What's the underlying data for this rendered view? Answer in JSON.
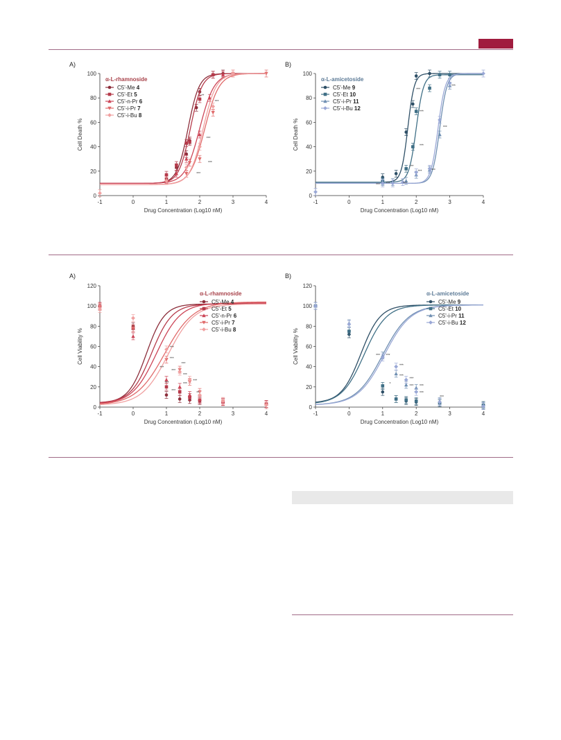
{
  "page": {
    "accent_color": "#a01c3e",
    "rule_color": "#a06a86"
  },
  "chart_data": [
    {
      "id": "top-left",
      "panel": "A)",
      "type": "line",
      "ylabel": "Cell Death %",
      "xlabel": "Drug Concentration (Log10 nM)",
      "xlim": [
        -1,
        4
      ],
      "ylim": [
        0,
        100
      ],
      "xticks": [
        "-1",
        "0",
        "1",
        "2",
        "3",
        "4"
      ],
      "yticks": [
        "0",
        "20",
        "40",
        "60",
        "80",
        "100"
      ],
      "legend_title": "α-L-rhamnoside",
      "legend_color": "#a8424a",
      "series": [
        {
          "label": "C5'-Me",
          "num": "4",
          "color": "#8c2d3a",
          "marker": "circle",
          "curve": {
            "bottom": 10,
            "top": 100,
            "ec50": 1.65,
            "hill": 2.6
          },
          "points": [
            [
              1.0,
              14
            ],
            [
              1.3,
              23
            ],
            [
              1.6,
              34
            ],
            [
              1.7,
              45
            ],
            [
              1.9,
              72
            ],
            [
              2.0,
              85
            ],
            [
              2.4,
              99
            ],
            [
              2.7,
              100
            ]
          ]
        },
        {
          "label": "C5'-Et",
          "num": "5",
          "color": "#b53a4a",
          "marker": "square",
          "curve": {
            "bottom": 10,
            "top": 100,
            "ec50": 1.72,
            "hill": 2.5
          },
          "points": [
            [
              1.0,
              17
            ],
            [
              1.3,
              25
            ],
            [
              1.6,
              43
            ],
            [
              1.7,
              44
            ],
            [
              2.0,
              79
            ],
            [
              2.4,
              99
            ]
          ]
        },
        {
          "label": "C5'-n-Pr",
          "num": "6",
          "color": "#cc4456",
          "marker": "triangle",
          "curve": {
            "bottom": 10,
            "top": 100,
            "ec50": 2.0,
            "hill": 2.0
          },
          "points": [
            [
              1.0,
              13
            ],
            [
              1.3,
              18
            ],
            [
              1.6,
              30
            ],
            [
              2.0,
              50
            ],
            [
              2.3,
              80
            ],
            [
              2.7,
              99
            ]
          ]
        },
        {
          "label": "C5'-i-Pr",
          "num": "7",
          "color": "#e06a6a",
          "marker": "triangle-down",
          "curve": {
            "bottom": 9,
            "top": 100,
            "ec50": 2.15,
            "hill": 2.0
          },
          "points": [
            [
              1.0,
              12
            ],
            [
              1.6,
              18
            ],
            [
              1.7,
              27
            ],
            [
              2.0,
              30
            ],
            [
              2.4,
              68
            ],
            [
              3.0,
              100
            ],
            [
              4.0,
              100
            ]
          ]
        },
        {
          "label": "C5'-i-Bu",
          "num": "8",
          "color": "#f0a0a0",
          "marker": "diamond",
          "curve": {
            "bottom": 9,
            "top": 100,
            "ec50": 2.1,
            "hill": 2.2
          },
          "points": [
            [
              -1.0,
              2
            ],
            [
              1.0,
              12
            ],
            [
              1.6,
              23
            ],
            [
              2.0,
              40
            ],
            [
              2.4,
              73
            ],
            [
              3.0,
              100
            ]
          ]
        }
      ],
      "annotations": [
        {
          "x": 2.05,
          "y": 81,
          "text": "**"
        },
        {
          "x": 2.45,
          "y": 76,
          "text": "***"
        },
        {
          "x": 2.2,
          "y": 46,
          "text": "***"
        },
        {
          "x": 2.25,
          "y": 26,
          "text": "***"
        },
        {
          "x": 1.9,
          "y": 17,
          "text": "***"
        }
      ]
    },
    {
      "id": "top-right",
      "panel": "B)",
      "type": "line",
      "ylabel": "Cell Death %",
      "xlabel": "Drug Concentration (Log10 nM)",
      "xlim": [
        -1,
        4
      ],
      "ylim": [
        0,
        100
      ],
      "xticks": [
        "-1",
        "0",
        "1",
        "2",
        "3",
        "4"
      ],
      "yticks": [
        "0",
        "20",
        "40",
        "60",
        "80",
        "100"
      ],
      "legend_title": "α-L-amicetoside",
      "legend_color": "#5c7a96",
      "series": [
        {
          "label": "C5'-Me",
          "num": "9",
          "color": "#2e4f66",
          "marker": "circle",
          "curve": {
            "bottom": 11,
            "top": 100,
            "ec50": 1.75,
            "hill": 4.5
          },
          "points": [
            [
              1.0,
              15
            ],
            [
              1.4,
              18
            ],
            [
              1.7,
              52
            ],
            [
              1.9,
              75
            ],
            [
              2.0,
              98
            ],
            [
              2.4,
              100
            ]
          ]
        },
        {
          "label": "C5'-Et",
          "num": "10",
          "color": "#3f6f86",
          "marker": "square",
          "curve": {
            "bottom": 11,
            "top": 99,
            "ec50": 2.0,
            "hill": 4.0
          },
          "points": [
            [
              1.0,
              12
            ],
            [
              1.7,
              22
            ],
            [
              1.9,
              40
            ],
            [
              2.0,
              69
            ],
            [
              2.4,
              88
            ],
            [
              2.7,
              99
            ],
            [
              3.0,
              99
            ]
          ]
        },
        {
          "label": "C5'-i-Pr",
          "num": "11",
          "color": "#6f8fb2",
          "marker": "triangle",
          "curve": {
            "bottom": 10,
            "top": 100,
            "ec50": 2.7,
            "hill": 4.0
          },
          "points": [
            [
              1.0,
              11
            ],
            [
              1.3,
              11
            ],
            [
              1.7,
              12
            ],
            [
              2.0,
              17
            ],
            [
              2.4,
              21
            ],
            [
              2.7,
              50
            ],
            [
              3.0,
              90
            ]
          ]
        },
        {
          "label": "C5'-i-Bu",
          "num": "12",
          "color": "#9aa8d6",
          "marker": "diamond",
          "curve": {
            "bottom": 10,
            "top": 100,
            "ec50": 2.65,
            "hill": 4.0
          },
          "points": [
            [
              -1.0,
              3
            ],
            [
              1.0,
              10
            ],
            [
              1.3,
              10
            ],
            [
              1.6,
              11
            ],
            [
              2.0,
              19
            ],
            [
              2.4,
              22
            ],
            [
              2.7,
              62
            ],
            [
              3.0,
              92
            ],
            [
              4.0,
              100
            ]
          ]
        }
      ],
      "annotations": [
        {
          "x": 2.0,
          "y": 86,
          "text": "***"
        },
        {
          "x": 2.1,
          "y": 68,
          "text": "***"
        },
        {
          "x": 2.1,
          "y": 40,
          "text": "***"
        },
        {
          "x": 1.8,
          "y": 23,
          "text": "***"
        },
        {
          "x": 0.8,
          "y": 8,
          "text": "***"
        },
        {
          "x": 1.1,
          "y": 9,
          "text": "***"
        },
        {
          "x": 1.6,
          "y": 9,
          "text": "***"
        },
        {
          "x": 2.05,
          "y": 19,
          "text": "***"
        },
        {
          "x": 2.45,
          "y": 20,
          "text": "***"
        },
        {
          "x": 2.8,
          "y": 55,
          "text": "***"
        },
        {
          "x": 3.05,
          "y": 89,
          "text": "***"
        }
      ]
    },
    {
      "id": "bottom-left",
      "panel": "A)",
      "type": "line",
      "ylabel": "Cell Viability %",
      "xlabel": "Drug Concentration (Log10 nM)",
      "xlim": [
        -1,
        4
      ],
      "ylim": [
        0,
        120
      ],
      "xticks": [
        "-1",
        "0",
        "1",
        "2",
        "3",
        "4"
      ],
      "yticks": [
        "0",
        "20",
        "40",
        "60",
        "80",
        "100",
        "120"
      ],
      "legend_title": "α-L-rhamnoside",
      "legend_color": "#a8424a",
      "series": [
        {
          "label": "C5'-Me",
          "num": "4",
          "color": "#8c2d3a",
          "marker": "circle",
          "curve": {
            "bottom": 4,
            "top": 102,
            "ec50": 0.4,
            "hill": 1.6
          },
          "points": [
            [
              -1.0,
              100
            ],
            [
              0.0,
              80
            ],
            [
              1.0,
              12
            ],
            [
              1.4,
              8
            ],
            [
              1.7,
              7
            ],
            [
              2.0,
              6
            ],
            [
              2.7,
              5
            ],
            [
              4.0,
              3
            ]
          ]
        },
        {
          "label": "C5'-Et",
          "num": "5",
          "color": "#b53a4a",
          "marker": "square",
          "curve": {
            "bottom": 4,
            "top": 102,
            "ec50": 0.55,
            "hill": 1.4
          },
          "points": [
            [
              -1.0,
              100
            ],
            [
              0.0,
              78
            ],
            [
              1.0,
              20
            ],
            [
              1.4,
              15
            ],
            [
              1.7,
              10
            ],
            [
              2.0,
              7
            ],
            [
              2.7,
              5
            ],
            [
              4.0,
              3
            ]
          ]
        },
        {
          "label": "C5'-n-Pr",
          "num": "6",
          "color": "#cc4456",
          "marker": "triangle",
          "curve": {
            "bottom": 3,
            "top": 103,
            "ec50": 0.7,
            "hill": 1.2
          },
          "points": [
            [
              -1.0,
              100
            ],
            [
              0.0,
              70
            ],
            [
              1.0,
              27
            ],
            [
              1.4,
              20
            ],
            [
              1.7,
              12
            ],
            [
              2.0,
              8
            ],
            [
              2.7,
              5
            ],
            [
              4.0,
              3
            ]
          ]
        },
        {
          "label": "C5'-i-Pr",
          "num": "7",
          "color": "#e06a6a",
          "marker": "triangle-down",
          "curve": {
            "bottom": 2,
            "top": 104,
            "ec50": 0.95,
            "hill": 1.0
          },
          "points": [
            [
              -1.0,
              99
            ],
            [
              0.0,
              78
            ],
            [
              1.0,
              47
            ],
            [
              1.4,
              37
            ],
            [
              1.7,
              25
            ],
            [
              2.0,
              15
            ],
            [
              2.7,
              6
            ],
            [
              4.0,
              2
            ]
          ]
        },
        {
          "label": "C5'-i-Bu",
          "num": "8",
          "color": "#f0a0a0",
          "marker": "diamond",
          "curve": {
            "bottom": 2,
            "top": 102,
            "ec50": 1.05,
            "hill": 1.1
          },
          "points": [
            [
              -1.0,
              97
            ],
            [
              0.0,
              88
            ],
            [
              1.0,
              57
            ],
            [
              1.4,
              35
            ],
            [
              1.7,
              27
            ],
            [
              2.0,
              12
            ],
            [
              2.7,
              6
            ],
            [
              4.0,
              2
            ]
          ]
        }
      ],
      "annotations": [
        {
          "x": 1.1,
          "y": 58,
          "text": "***"
        },
        {
          "x": 1.1,
          "y": 47,
          "text": "***"
        },
        {
          "x": 0.8,
          "y": 38,
          "text": "***"
        },
        {
          "x": 1.15,
          "y": 35,
          "text": "***"
        },
        {
          "x": 1.45,
          "y": 42,
          "text": "***"
        },
        {
          "x": 1.5,
          "y": 31,
          "text": "***"
        },
        {
          "x": 1.5,
          "y": 22,
          "text": "***"
        },
        {
          "x": 1.8,
          "y": 25,
          "text": "***"
        },
        {
          "x": 0.95,
          "y": 23,
          "text": "***"
        },
        {
          "x": 1.15,
          "y": 15,
          "text": "***"
        },
        {
          "x": 1.9,
          "y": 13,
          "text": "**"
        }
      ]
    },
    {
      "id": "bottom-right",
      "panel": "B)",
      "type": "line",
      "ylabel": "Cell Viability %",
      "xlabel": "Drug Concentration (Log10 nM)",
      "xlim": [
        -1,
        4
      ],
      "ylim": [
        0,
        120
      ],
      "xticks": [
        "-1",
        "0",
        "1",
        "2",
        "3",
        "4"
      ],
      "yticks": [
        "0",
        "20",
        "40",
        "60",
        "80",
        "100",
        "120"
      ],
      "legend_title": "α-L-amicetoside",
      "legend_color": "#5c7a96",
      "series": [
        {
          "label": "C5'-Me",
          "num": "9",
          "color": "#2e4f66",
          "marker": "circle",
          "curve": {
            "bottom": 4,
            "top": 101,
            "ec50": 0.35,
            "hill": 1.5
          },
          "points": [
            [
              -1.0,
              100
            ],
            [
              0.0,
              72
            ],
            [
              1.0,
              15
            ],
            [
              1.4,
              8
            ],
            [
              1.7,
              6
            ],
            [
              2.0,
              5
            ],
            [
              2.7,
              4
            ],
            [
              4.0,
              2
            ]
          ]
        },
        {
          "label": "C5'-Et",
          "num": "10",
          "color": "#3f6f86",
          "marker": "square",
          "curve": {
            "bottom": 3,
            "top": 101,
            "ec50": 0.45,
            "hill": 1.3
          },
          "points": [
            [
              -1.0,
              100
            ],
            [
              0.0,
              75
            ],
            [
              1.0,
              21
            ],
            [
              1.4,
              8
            ],
            [
              1.7,
              7
            ],
            [
              2.0,
              6
            ],
            [
              2.7,
              4
            ],
            [
              4.0,
              2
            ]
          ]
        },
        {
          "label": "C5'-i-Pr",
          "num": "11",
          "color": "#6f8fb2",
          "marker": "triangle",
          "curve": {
            "bottom": 2,
            "top": 101,
            "ec50": 1.0,
            "hill": 1.1
          },
          "points": [
            [
              -1.0,
              100
            ],
            [
              0.0,
              83
            ],
            [
              1.0,
              51
            ],
            [
              1.4,
              33
            ],
            [
              1.7,
              22
            ],
            [
              2.0,
              19
            ],
            [
              2.7,
              6
            ],
            [
              4.0,
              1
            ]
          ]
        },
        {
          "label": "C5'-i-Bu",
          "num": "12",
          "color": "#9aa8d6",
          "marker": "diamond",
          "curve": {
            "bottom": 2,
            "top": 101,
            "ec50": 1.05,
            "hill": 1.1
          },
          "points": [
            [
              -1.0,
              100
            ],
            [
              0.0,
              82
            ],
            [
              1.0,
              49
            ],
            [
              1.4,
              40
            ],
            [
              1.7,
              27
            ],
            [
              2.0,
              15
            ],
            [
              2.7,
              5
            ],
            [
              4.0,
              1
            ]
          ]
        }
      ],
      "annotations": [
        {
          "x": 0.8,
          "y": 50,
          "text": "***"
        },
        {
          "x": 1.1,
          "y": 50,
          "text": "***"
        },
        {
          "x": 1.5,
          "y": 40,
          "text": "***"
        },
        {
          "x": 1.5,
          "y": 30,
          "text": "***"
        },
        {
          "x": 1.8,
          "y": 27,
          "text": "***"
        },
        {
          "x": 1.8,
          "y": 20,
          "text": "***"
        },
        {
          "x": 2.1,
          "y": 20,
          "text": "***"
        },
        {
          "x": 2.1,
          "y": 13,
          "text": "***"
        },
        {
          "x": 1.2,
          "y": 22,
          "text": "*"
        },
        {
          "x": 2.7,
          "y": 9,
          "text": "***"
        }
      ]
    }
  ]
}
